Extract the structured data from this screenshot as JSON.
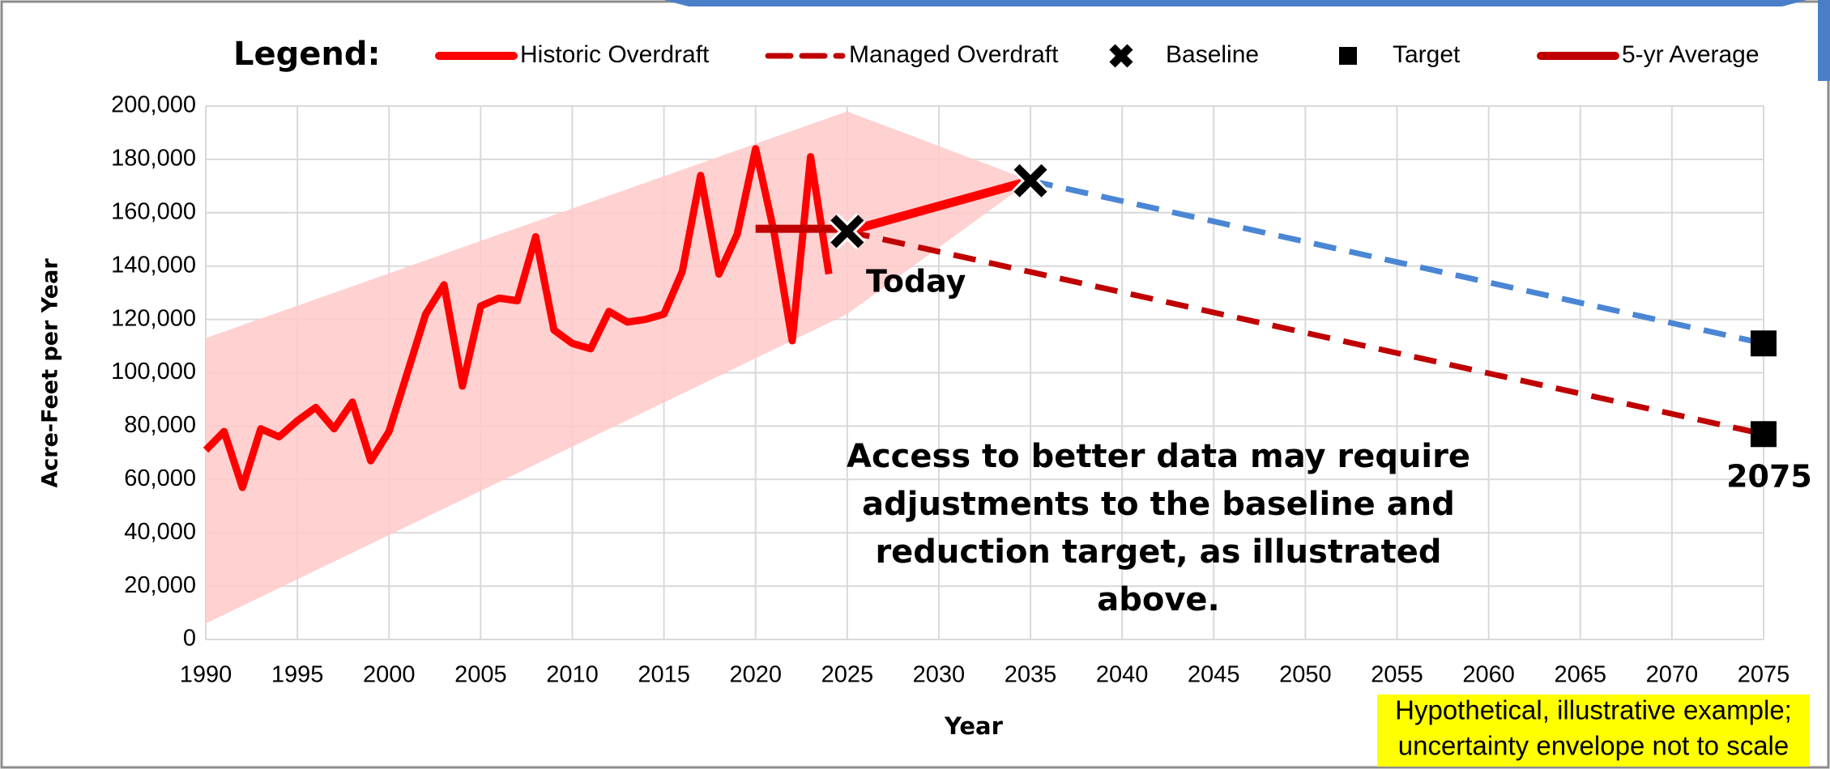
{
  "chart_data": {
    "type": "line",
    "legend_title": "Legend:",
    "x_label": "Year",
    "y_label": "Acre-Feet per Year",
    "xlim": [
      1990,
      2075
    ],
    "ylim": [
      0,
      200000
    ],
    "xticks": [
      1990,
      1995,
      2000,
      2005,
      2010,
      2015,
      2020,
      2025,
      2030,
      2035,
      2040,
      2045,
      2050,
      2055,
      2060,
      2065,
      2070,
      2075
    ],
    "yticks": [
      0,
      {
        "value": 20000,
        "label": "20,000"
      },
      {
        "value": 40000,
        "label": "40,000"
      },
      {
        "value": 60000,
        "label": "60,000"
      },
      {
        "value": 80000,
        "label": "80,000"
      },
      {
        "value": 100000,
        "label": "100,000"
      },
      {
        "value": 120000,
        "label": "120,000"
      },
      {
        "value": 140000,
        "label": "140,000"
      },
      {
        "value": 160000,
        "label": "160,000"
      },
      {
        "value": 180000,
        "label": "180,000"
      },
      {
        "value": 200000,
        "label": "200,000"
      }
    ],
    "grid": true,
    "envelope": {
      "color": "#ffc9c9",
      "x": [
        1990,
        2025,
        2035
      ],
      "upper": [
        113000,
        198000,
        172000
      ],
      "lower": [
        6000,
        122000,
        172000
      ]
    },
    "series": [
      {
        "name": "Historic Overdraft",
        "color": "#ff0000",
        "style": "solid",
        "width": 9,
        "x": [
          1990,
          1991,
          1992,
          1993,
          1994,
          1995,
          1996,
          1997,
          1998,
          1999,
          2000,
          2001,
          2002,
          2003,
          2004,
          2005,
          2006,
          2007,
          2008,
          2009,
          2010,
          2011,
          2012,
          2013,
          2014,
          2015,
          2016,
          2017,
          2018,
          2019,
          2020,
          2021,
          2022,
          2023,
          2024
        ],
        "values": [
          71000,
          78000,
          57000,
          79000,
          76000,
          82000,
          87000,
          79000,
          89000,
          67000,
          78000,
          100000,
          122000,
          133000,
          95000,
          125000,
          128000,
          127000,
          151000,
          116000,
          111000,
          109000,
          123000,
          119000,
          120000,
          122000,
          138000,
          174000,
          137000,
          152000,
          184000,
          153000,
          112000,
          181000,
          137000
        ]
      },
      {
        "name": "Managed Overdraft",
        "color": "#c00000",
        "style": "dashed",
        "width": 7,
        "x": [
          2025,
          2075
        ],
        "values": [
          153000,
          77000
        ]
      },
      {
        "color": "#4a86d4",
        "style": "dashed",
        "width": 7,
        "x": [
          2035,
          2075
        ],
        "values": [
          172000,
          111000
        ]
      },
      {
        "name": "5-yr Average",
        "color": "#c00000",
        "style": "solid",
        "width": 10,
        "x": [
          2020,
          2025
        ],
        "values": [
          154000,
          154000
        ]
      },
      {
        "color": "#ff0000",
        "style": "solid",
        "width": 11,
        "x": [
          2025,
          2035
        ],
        "values": [
          153000,
          172000
        ]
      }
    ],
    "markers": [
      {
        "name": "Baseline",
        "shape": "x",
        "color": "#000000",
        "x": [
          2025,
          2035
        ],
        "values": [
          153000,
          172000
        ]
      },
      {
        "name": "Target",
        "shape": "square",
        "color": "#000000",
        "x": [
          2075,
          2075
        ],
        "values": [
          111000,
          77000
        ]
      }
    ],
    "annotations": {
      "today": "Today",
      "end_year": "2075",
      "note_lines": [
        "Access to better data may require",
        "adjustments to the baseline and",
        "reduction target, as illustrated",
        "above."
      ],
      "disclaimer_lines": [
        "Hypothetical, illustrative example;",
        "uncertainty envelope not to scale"
      ]
    }
  }
}
